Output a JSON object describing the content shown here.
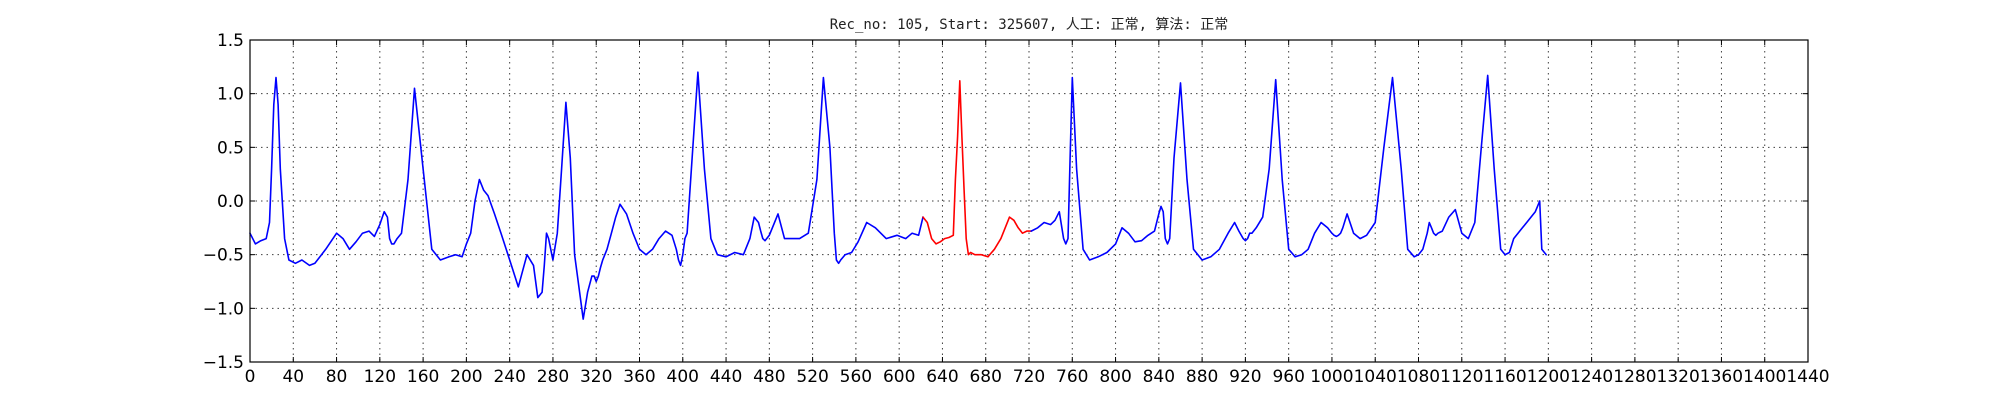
{
  "chart_data": {
    "type": "line",
    "title": "Rec_no: 105, Start: 325607, 人工: 正常, 算法: 正常",
    "xlabel": "",
    "ylabel": "",
    "xlim": [
      0,
      1440
    ],
    "ylim": [
      -1.5,
      1.5
    ],
    "grid": true,
    "x_ticks": [
      0,
      40,
      80,
      120,
      160,
      200,
      240,
      280,
      320,
      360,
      400,
      440,
      480,
      520,
      560,
      600,
      640,
      680,
      720,
      760,
      800,
      840,
      880,
      920,
      960,
      1000,
      1040,
      1080,
      1120,
      1160,
      1200,
      1240,
      1280,
      1320,
      1360,
      1400,
      1440
    ],
    "x_tick_labels": [
      "0",
      "40",
      "80",
      "120",
      "160",
      "200",
      "240",
      "280",
      "320",
      "360",
      "400",
      "440",
      "480",
      "520",
      "560",
      "600",
      "640",
      "680",
      "720",
      "760",
      "800",
      "840",
      "880",
      "920",
      "960",
      "1000",
      "1040",
      "1080",
      "1120",
      "1160",
      "1200",
      "1240",
      "1280",
      "1320",
      "1360",
      "1400",
      "1440"
    ],
    "y_ticks": [
      -1.5,
      -1.0,
      -0.5,
      0.0,
      0.5,
      1.0,
      1.5
    ],
    "y_tick_labels": [
      "−1.5",
      "−1.0",
      "−0.5",
      "0.0",
      "0.5",
      "1.0",
      "1.5"
    ],
    "colors": {
      "main": "#0000ff",
      "highlight": "#ff0000"
    },
    "series": [
      {
        "color": "#0000ff",
        "x": [
          0,
          5,
          10,
          15,
          18,
          20,
          22,
          24,
          26,
          28,
          32,
          36,
          42,
          48,
          55,
          60,
          70,
          80,
          86,
          92,
          98,
          104,
          110,
          115,
          120,
          124,
          127,
          129,
          131,
          133,
          136,
          140,
          146,
          152,
          160,
          168,
          176,
          184,
          190,
          196,
          200,
          204,
          208,
          212,
          216,
          220,
          226,
          232,
          240,
          248,
          256,
          262,
          266,
          270,
          272,
          274,
          276,
          280,
          284,
          288,
          292,
          296,
          300,
          304,
          308,
          312,
          316,
          318,
          320,
          322,
          324,
          326,
          330,
          334,
          338,
          342,
          348,
          354,
          360,
          366,
          372,
          378,
          384,
          390,
          394,
          396,
          398,
          400,
          402,
          404,
          408,
          414,
          420,
          426,
          432,
          440,
          448,
          456,
          462,
          466,
          470,
          472,
          474,
          476,
          480,
          484,
          488,
          494,
          500,
          508,
          516,
          524,
          530,
          536,
          540,
          542,
          544,
          546,
          550,
          556,
          562,
          570,
          578,
          588,
          598,
          606,
          612,
          618,
          622
        ],
        "y": [
          -0.3,
          -0.4,
          -0.37,
          -0.35,
          -0.2,
          0.3,
          0.9,
          1.15,
          0.9,
          0.3,
          -0.35,
          -0.55,
          -0.58,
          -0.55,
          -0.6,
          -0.58,
          -0.45,
          -0.3,
          -0.35,
          -0.45,
          -0.38,
          -0.3,
          -0.28,
          -0.33,
          -0.22,
          -0.1,
          -0.15,
          -0.35,
          -0.4,
          -0.4,
          -0.35,
          -0.3,
          0.2,
          1.05,
          0.3,
          -0.45,
          -0.55,
          -0.52,
          -0.5,
          -0.52,
          -0.4,
          -0.3,
          0.0,
          0.2,
          0.1,
          0.05,
          -0.12,
          -0.3,
          -0.55,
          -0.8,
          -0.5,
          -0.6,
          -0.9,
          -0.85,
          -0.6,
          -0.3,
          -0.35,
          -0.55,
          -0.3,
          0.3,
          0.92,
          0.4,
          -0.5,
          -0.8,
          -1.1,
          -0.85,
          -0.7,
          -0.7,
          -0.75,
          -0.7,
          -0.62,
          -0.55,
          -0.45,
          -0.3,
          -0.15,
          -0.03,
          -0.12,
          -0.3,
          -0.45,
          -0.5,
          -0.45,
          -0.35,
          -0.28,
          -0.32,
          -0.45,
          -0.55,
          -0.6,
          -0.5,
          -0.35,
          -0.3,
          0.3,
          1.2,
          0.3,
          -0.35,
          -0.5,
          -0.52,
          -0.48,
          -0.5,
          -0.35,
          -0.15,
          -0.2,
          -0.28,
          -0.35,
          -0.37,
          -0.32,
          -0.22,
          -0.12,
          -0.35,
          -0.35,
          -0.35,
          -0.3,
          0.2,
          1.15,
          0.5,
          -0.3,
          -0.55,
          -0.58,
          -0.55,
          -0.5,
          -0.48,
          -0.38,
          -0.2,
          -0.25,
          -0.35,
          -0.32,
          -0.35,
          -0.3,
          -0.32,
          -0.15
        ]
      },
      {
        "color": "#ff0000",
        "x": [
          622,
          626,
          630,
          634,
          638,
          642,
          646,
          650,
          652,
          654,
          656,
          658,
          660,
          662,
          664,
          666,
          670,
          676,
          682,
          688,
          694,
          698,
          702,
          706,
          710,
          714,
          718,
          722
        ],
        "y": [
          -0.15,
          -0.2,
          -0.35,
          -0.4,
          -0.38,
          -0.35,
          -0.34,
          -0.32,
          0.2,
          0.6,
          1.12,
          0.6,
          0.1,
          -0.35,
          -0.5,
          -0.48,
          -0.5,
          -0.5,
          -0.52,
          -0.45,
          -0.35,
          -0.25,
          -0.15,
          -0.18,
          -0.25,
          -0.3,
          -0.28,
          -0.28
        ]
      },
      {
        "color": "#0000ff",
        "x": [
          722,
          728,
          734,
          740,
          744,
          748,
          752,
          754,
          756,
          758,
          760,
          764,
          770,
          776,
          784,
          792,
          800,
          806,
          812,
          818,
          824,
          830,
          836,
          840,
          842,
          844,
          846,
          848,
          850,
          854,
          860,
          866,
          872,
          880,
          888,
          896,
          904,
          910,
          914,
          918,
          920,
          922,
          924,
          926,
          930,
          936,
          942,
          948,
          954,
          960,
          966,
          972,
          978,
          984,
          990,
          996,
          1000,
          1002,
          1004,
          1006,
          1008,
          1010,
          1014,
          1020,
          1026,
          1032,
          1040,
          1048,
          1056,
          1064,
          1070,
          1076,
          1080,
          1084,
          1088,
          1090,
          1092,
          1094,
          1096,
          1098,
          1102,
          1108,
          1114,
          1120,
          1126,
          1132,
          1138,
          1144,
          1150,
          1156,
          1160,
          1164,
          1168,
          1172,
          1176,
          1180,
          1184,
          1188,
          1190,
          1192,
          1194,
          1198
        ],
        "y": [
          -0.28,
          -0.25,
          -0.2,
          -0.22,
          -0.18,
          -0.1,
          -0.35,
          -0.4,
          -0.35,
          0.4,
          1.15,
          0.3,
          -0.45,
          -0.55,
          -0.52,
          -0.48,
          -0.4,
          -0.25,
          -0.3,
          -0.38,
          -0.37,
          -0.32,
          -0.28,
          -0.12,
          -0.05,
          -0.1,
          -0.35,
          -0.4,
          -0.35,
          0.4,
          1.1,
          0.2,
          -0.45,
          -0.55,
          -0.52,
          -0.45,
          -0.3,
          -0.2,
          -0.28,
          -0.35,
          -0.37,
          -0.35,
          -0.3,
          -0.3,
          -0.25,
          -0.15,
          0.3,
          1.13,
          0.2,
          -0.45,
          -0.52,
          -0.5,
          -0.45,
          -0.3,
          -0.2,
          -0.25,
          -0.3,
          -0.32,
          -0.33,
          -0.32,
          -0.3,
          -0.25,
          -0.12,
          -0.3,
          -0.35,
          -0.32,
          -0.2,
          0.5,
          1.15,
          0.3,
          -0.45,
          -0.52,
          -0.5,
          -0.45,
          -0.3,
          -0.2,
          -0.25,
          -0.3,
          -0.32,
          -0.3,
          -0.28,
          -0.15,
          -0.08,
          -0.3,
          -0.35,
          -0.2,
          0.5,
          1.17,
          0.3,
          -0.45,
          -0.5,
          -0.48,
          -0.35,
          -0.3,
          -0.25,
          -0.2,
          -0.15,
          -0.1,
          -0.05,
          0.0,
          -0.45,
          -0.5
        ]
      }
    ]
  }
}
